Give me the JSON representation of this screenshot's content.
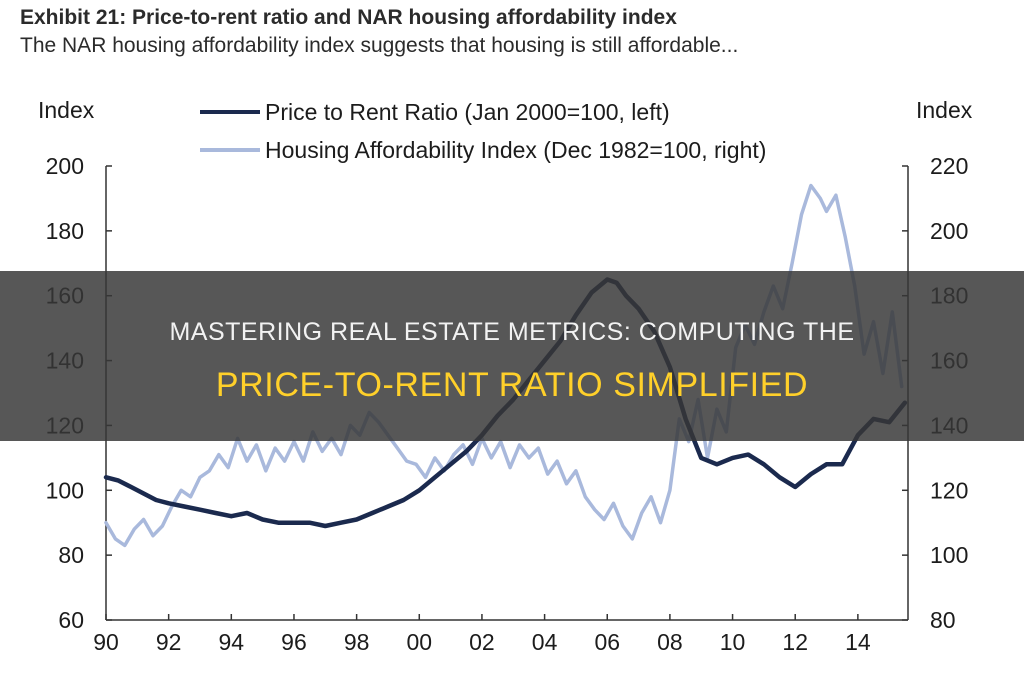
{
  "header": {
    "title": "Exhibit 21: Price-to-rent ratio and NAR housing affordability index",
    "subtitle": "The NAR housing affordability index suggests that housing is still affordable..."
  },
  "banner": {
    "line1": "Mastering Real Estate Metrics: Computing The",
    "line2": "Price-To-Rent Ratio Simplified"
  },
  "colors": {
    "price_to_rent": "#1b2a4e",
    "affordability": "#a9b9dc",
    "axis": "#333333"
  },
  "chart_data": {
    "type": "line",
    "left_axis_label": "Index",
    "right_axis_label": "Index",
    "ylim_left": [
      60,
      200
    ],
    "ylim_right": [
      80,
      220
    ],
    "xlim": [
      1990,
      2015.6
    ],
    "yticks_left": [
      "60",
      "80",
      "100",
      "120",
      "140",
      "160",
      "180",
      "200"
    ],
    "yticks_right": [
      "80",
      "100",
      "120",
      "140",
      "160",
      "180",
      "200",
      "220"
    ],
    "xticks": [
      "90",
      "92",
      "94",
      "96",
      "98",
      "00",
      "02",
      "04",
      "06",
      "08",
      "10",
      "12",
      "14"
    ],
    "legend_placement": "top",
    "grid": false,
    "series": [
      {
        "name": "Price to Rent Ratio (Jan 2000=100, left)",
        "axis": "left",
        "x": [
          1990,
          1990.4,
          1990.8,
          1991.2,
          1991.6,
          1992,
          1992.5,
          1993,
          1993.5,
          1994,
          1994.5,
          1995,
          1995.5,
          1996,
          1996.5,
          1997,
          1997.5,
          1998,
          1998.5,
          1999,
          1999.5,
          2000,
          2000.5,
          2001,
          2001.5,
          2002,
          2002.5,
          2003,
          2003.5,
          2004,
          2004.5,
          2005,
          2005.5,
          2006,
          2006.3,
          2006.6,
          2007,
          2007.5,
          2008,
          2008.5,
          2009,
          2009.5,
          2010,
          2010.5,
          2011,
          2011.5,
          2012,
          2012.5,
          2013,
          2013.5,
          2014,
          2014.5,
          2015,
          2015.5
        ],
        "y": [
          104,
          103,
          101,
          99,
          97,
          96,
          95,
          94,
          93,
          92,
          93,
          91,
          90,
          90,
          90,
          89,
          90,
          91,
          93,
          95,
          97,
          100,
          104,
          108,
          112,
          117,
          123,
          128,
          134,
          140,
          146,
          154,
          161,
          165,
          164,
          160,
          156,
          149,
          138,
          122,
          110,
          108,
          110,
          111,
          108,
          104,
          101,
          105,
          108,
          108,
          117,
          122,
          121,
          127
        ]
      },
      {
        "name": "Housing Affordability Index (Dec 1982=100, right)",
        "axis": "right",
        "x": [
          1990,
          1990.3,
          1990.6,
          1990.9,
          1991.2,
          1991.5,
          1991.8,
          1992.1,
          1992.4,
          1992.7,
          1993,
          1993.3,
          1993.6,
          1993.9,
          1994.2,
          1994.5,
          1994.8,
          1995.1,
          1995.4,
          1995.7,
          1996,
          1996.3,
          1996.6,
          1996.9,
          1997.2,
          1997.5,
          1997.8,
          1998.1,
          1998.4,
          1998.7,
          1999,
          1999.3,
          1999.6,
          1999.9,
          2000.2,
          2000.5,
          2000.8,
          2001.1,
          2001.4,
          2001.7,
          2002,
          2002.3,
          2002.6,
          2002.9,
          2003.2,
          2003.5,
          2003.8,
          2004.1,
          2004.4,
          2004.7,
          2005,
          2005.3,
          2005.6,
          2005.9,
          2006.2,
          2006.5,
          2006.8,
          2007.1,
          2007.4,
          2007.7,
          2008,
          2008.3,
          2008.6,
          2008.9,
          2009.2,
          2009.5,
          2009.8,
          2010.1,
          2010.4,
          2010.7,
          2011,
          2011.3,
          2011.6,
          2011.9,
          2012.2,
          2012.5,
          2012.8,
          2013,
          2013.3,
          2013.6,
          2013.9,
          2014.2,
          2014.5,
          2014.8,
          2015.1,
          2015.4
        ],
        "y": [
          110,
          105,
          103,
          108,
          111,
          106,
          109,
          115,
          120,
          118,
          124,
          126,
          131,
          127,
          136,
          129,
          134,
          126,
          133,
          129,
          135,
          129,
          138,
          132,
          136,
          131,
          140,
          137,
          144,
          141,
          137,
          133,
          129,
          128,
          124,
          130,
          126,
          131,
          134,
          128,
          136,
          130,
          135,
          127,
          134,
          130,
          133,
          125,
          129,
          122,
          126,
          118,
          114,
          111,
          116,
          109,
          105,
          113,
          118,
          110,
          120,
          142,
          135,
          148,
          130,
          145,
          138,
          164,
          171,
          165,
          175,
          183,
          176,
          190,
          205,
          214,
          210,
          206,
          211,
          198,
          183,
          162,
          172,
          156,
          175,
          152
        ]
      }
    ]
  }
}
